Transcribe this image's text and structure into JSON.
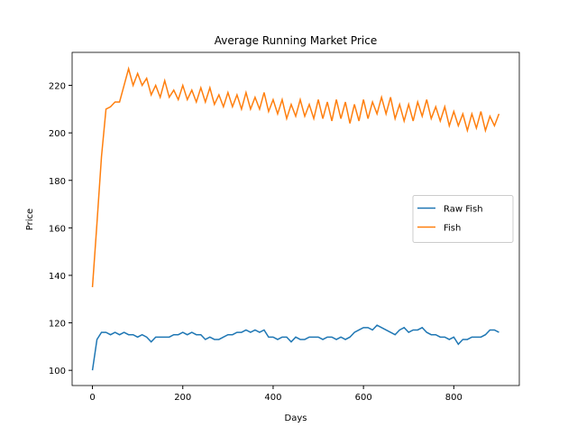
{
  "chart_data": {
    "type": "line",
    "title": "Average Running Market Price",
    "xlabel": "Days",
    "ylabel": "Price",
    "x": [
      0,
      10,
      20,
      30,
      40,
      50,
      60,
      70,
      80,
      90,
      100,
      110,
      120,
      130,
      140,
      150,
      160,
      170,
      180,
      190,
      200,
      210,
      220,
      230,
      240,
      250,
      260,
      270,
      280,
      290,
      300,
      310,
      320,
      330,
      340,
      350,
      360,
      370,
      380,
      390,
      400,
      410,
      420,
      430,
      440,
      450,
      460,
      470,
      480,
      490,
      500,
      510,
      520,
      530,
      540,
      550,
      560,
      570,
      580,
      590,
      600,
      610,
      620,
      630,
      640,
      650,
      660,
      670,
      680,
      690,
      700,
      710,
      720,
      730,
      740,
      750,
      760,
      770,
      780,
      790,
      800,
      810,
      820,
      830,
      840,
      850,
      860,
      870,
      880,
      890,
      900
    ],
    "series": [
      {
        "name": "Raw Fish",
        "color": "#1f77b4",
        "values": [
          100,
          113,
          116,
          116,
          115,
          116,
          115,
          116,
          115,
          115,
          114,
          115,
          114,
          112,
          114,
          114,
          114,
          114,
          115,
          115,
          116,
          115,
          116,
          115,
          115,
          113,
          114,
          113,
          113,
          114,
          115,
          115,
          116,
          116,
          117,
          116,
          117,
          116,
          117,
          114,
          114,
          113,
          114,
          114,
          112,
          114,
          113,
          113,
          114,
          114,
          114,
          113,
          114,
          114,
          113,
          114,
          113,
          114,
          116,
          117,
          118,
          118,
          117,
          119,
          118,
          117,
          116,
          115,
          117,
          118,
          116,
          117,
          117,
          118,
          116,
          115,
          115,
          114,
          114,
          113,
          114,
          111,
          113,
          113,
          114,
          114,
          114,
          115,
          117,
          117,
          116
        ]
      },
      {
        "name": "Fish",
        "color": "#ff7f0e",
        "values": [
          135,
          162,
          190,
          210,
          211,
          213,
          213,
          220,
          227,
          220,
          225,
          220,
          223,
          216,
          220,
          215,
          222,
          215,
          218,
          214,
          220,
          214,
          218,
          213,
          219,
          213,
          219,
          212,
          216,
          211,
          217,
          211,
          216,
          210,
          217,
          210,
          215,
          210,
          217,
          209,
          214,
          208,
          214,
          206,
          212,
          207,
          214,
          207,
          212,
          206,
          214,
          206,
          213,
          205,
          214,
          206,
          213,
          204,
          212,
          205,
          214,
          206,
          213,
          208,
          215,
          208,
          215,
          206,
          212,
          205,
          212,
          205,
          213,
          207,
          214,
          206,
          211,
          205,
          211,
          203,
          209,
          203,
          208,
          201,
          208,
          202,
          209,
          201,
          207,
          203,
          208
        ]
      }
    ],
    "xlim": [
      -45,
      945
    ],
    "ylim": [
      93.6,
      233.9
    ],
    "xticks": [
      0,
      200,
      400,
      600,
      800
    ],
    "yticks": [
      100,
      120,
      140,
      160,
      180,
      200,
      220
    ],
    "legend": "center right"
  }
}
